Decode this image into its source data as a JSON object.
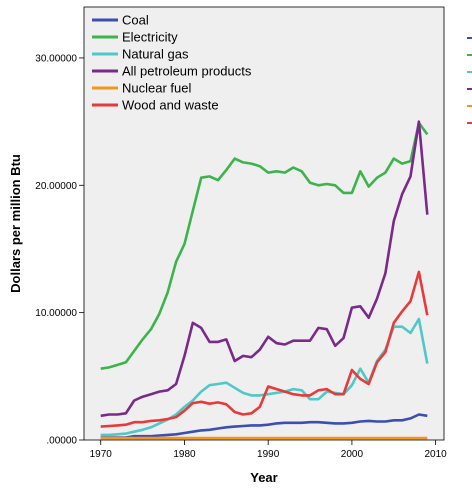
{
  "chart_data": {
    "type": "line",
    "xlabel": "Year",
    "ylabel": "Dollars per million Btu",
    "xlim": [
      1968,
      2011
    ],
    "ylim": [
      0,
      34
    ],
    "x_ticks": [
      1970,
      1980,
      1990,
      2000,
      2010
    ],
    "y_ticks": [
      0,
      10,
      20,
      30
    ],
    "y_tick_labels": [
      ".00000",
      "10.00000",
      "20.00000",
      "30.00000"
    ],
    "grid": false,
    "legend_position": "top-left",
    "background": "#efefef",
    "x": [
      1970,
      1971,
      1972,
      1973,
      1974,
      1975,
      1976,
      1977,
      1978,
      1979,
      1980,
      1981,
      1982,
      1983,
      1984,
      1985,
      1986,
      1987,
      1988,
      1989,
      1990,
      1991,
      1992,
      1993,
      1994,
      1995,
      1996,
      1997,
      1998,
      1999,
      2000,
      2001,
      2002,
      2003,
      2004,
      2005,
      2006,
      2007,
      2008,
      2009
    ],
    "series": [
      {
        "name": "Coal",
        "color": "#3a4fb0",
        "values": [
          0.2,
          0.2,
          0.2,
          0.2,
          0.3,
          0.3,
          0.3,
          0.35,
          0.4,
          0.45,
          0.55,
          0.65,
          0.75,
          0.8,
          0.9,
          1.0,
          1.05,
          1.1,
          1.15,
          1.15,
          1.2,
          1.3,
          1.35,
          1.35,
          1.35,
          1.4,
          1.4,
          1.35,
          1.3,
          1.3,
          1.35,
          1.45,
          1.5,
          1.45,
          1.45,
          1.55,
          1.55,
          1.7,
          2.0,
          1.9
        ]
      },
      {
        "name": "Electricity",
        "color": "#3cb44b",
        "values": [
          5.6,
          5.7,
          5.9,
          6.1,
          7.0,
          7.9,
          8.7,
          9.9,
          11.6,
          14.0,
          15.4,
          18.0,
          20.6,
          20.7,
          20.4,
          21.2,
          22.1,
          21.8,
          21.7,
          21.5,
          21.0,
          21.1,
          21.0,
          21.4,
          21.1,
          20.2,
          20.0,
          20.1,
          20.0,
          19.4,
          19.4,
          21.1,
          19.9,
          20.6,
          21.0,
          22.1,
          21.7,
          21.9,
          24.9,
          24.0
        ]
      },
      {
        "name": "Natural gas",
        "color": "#4fc8c8",
        "values": [
          0.4,
          0.4,
          0.45,
          0.5,
          0.65,
          0.8,
          1.0,
          1.3,
          1.6,
          2.0,
          2.6,
          3.1,
          3.8,
          4.3,
          4.4,
          4.5,
          4.1,
          3.7,
          3.5,
          3.5,
          3.6,
          3.7,
          3.8,
          4.0,
          3.9,
          3.2,
          3.2,
          3.8,
          3.7,
          3.6,
          4.3,
          5.6,
          4.5,
          6.2,
          7.1,
          8.9,
          8.9,
          8.4,
          9.5,
          6.0
        ]
      },
      {
        "name": "All petroleum products",
        "color": "#7a2a8a",
        "values": [
          1.9,
          2.0,
          2.0,
          2.1,
          3.1,
          3.4,
          3.6,
          3.8,
          3.9,
          4.4,
          6.6,
          9.2,
          8.8,
          7.7,
          7.7,
          7.9,
          6.2,
          6.6,
          6.5,
          7.1,
          8.1,
          7.6,
          7.5,
          7.8,
          7.8,
          7.8,
          8.8,
          8.7,
          7.4,
          8.0,
          10.4,
          10.5,
          9.6,
          11.1,
          13.1,
          17.2,
          19.3,
          20.7,
          25.0,
          17.7
        ]
      },
      {
        "name": "Nuclear fuel",
        "color": "#f7941d",
        "values": [
          0.15,
          0.15,
          0.15,
          0.15,
          0.15,
          0.15,
          0.15,
          0.15,
          0.15,
          0.15,
          0.15,
          0.15,
          0.15,
          0.15,
          0.15,
          0.15,
          0.15,
          0.15,
          0.15,
          0.15,
          0.15,
          0.15,
          0.15,
          0.15,
          0.15,
          0.15,
          0.15,
          0.15,
          0.15,
          0.15,
          0.15,
          0.15,
          0.15,
          0.15,
          0.15,
          0.15,
          0.15,
          0.15,
          0.15,
          0.15
        ]
      },
      {
        "name": "Wood and waste",
        "color": "#e83a3a",
        "values": [
          1.05,
          1.1,
          1.15,
          1.2,
          1.4,
          1.4,
          1.5,
          1.55,
          1.65,
          1.8,
          2.3,
          2.9,
          3.0,
          2.85,
          2.95,
          2.8,
          2.2,
          2.0,
          2.1,
          2.6,
          4.2,
          4.0,
          3.8,
          3.6,
          3.5,
          3.5,
          3.9,
          4.0,
          3.6,
          3.6,
          5.5,
          4.8,
          4.4,
          6.1,
          6.9,
          9.2,
          10.1,
          10.9,
          13.2,
          9.8
        ]
      }
    ]
  }
}
